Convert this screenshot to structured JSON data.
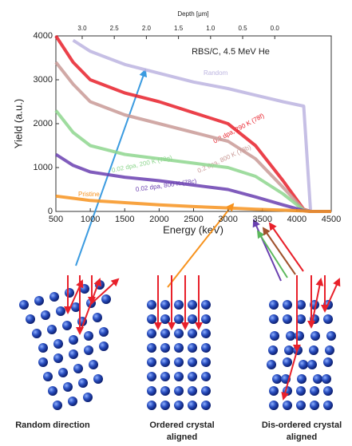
{
  "chart_data": {
    "type": "line",
    "title": "RBS/C, 4.5 MeV He",
    "xlabel": "Energy (keV)",
    "ylabel": "Yield (a.u.)",
    "x2label": "Depth [μm]",
    "xlim": [
      500,
      4500
    ],
    "xticks": [
      500,
      1000,
      1500,
      2000,
      2500,
      3000,
      3500,
      4000,
      4500
    ],
    "ylim": [
      0,
      4000
    ],
    "yticks": [
      0,
      1000,
      2000,
      3000,
      4000
    ],
    "x2lim": [
      3.41,
      -0.88
    ],
    "x2ticks": [
      {
        "value": 3,
        "label": "3.0"
      },
      {
        "value": 2.5,
        "label": "2.5"
      },
      {
        "value": 2,
        "label": "2.0"
      },
      {
        "value": 1.5,
        "label": "1.5"
      },
      {
        "value": 1,
        "label": "1.0"
      },
      {
        "value": 0.5,
        "label": "0.5"
      },
      {
        "value": 0,
        "label": "0.0"
      }
    ],
    "x": [
      500,
      750,
      1000,
      1500,
      2000,
      2500,
      3000,
      3400,
      3800,
      4100,
      4200,
      4500
    ],
    "series": [
      {
        "name": "Random",
        "color": "#bcb4e0",
        "values": [
          null,
          3900,
          3650,
          3350,
          3150,
          2950,
          2800,
          2650,
          2500,
          2400,
          0,
          0
        ]
      },
      {
        "name": "0.2 dpa, 290 K (78f)",
        "color": "#e8202a",
        "values": [
          4000,
          3400,
          3000,
          2700,
          2500,
          2250,
          2000,
          1500,
          700,
          50,
          0,
          0
        ]
      },
      {
        "name": "0.2 dpa, 800 K (78b)",
        "color": "#c99a96",
        "values": [
          3400,
          2900,
          2500,
          2200,
          2000,
          1800,
          1600,
          1200,
          550,
          40,
          0,
          0
        ]
      },
      {
        "name": "0.02 dpa, 200 K (78g)",
        "color": "#8ed68e",
        "values": [
          2300,
          1800,
          1500,
          1300,
          1200,
          1100,
          1000,
          800,
          400,
          30,
          0,
          0
        ]
      },
      {
        "name": "0.02 dpa, 800 K (78c)",
        "color": "#6a3fb0",
        "values": [
          1300,
          1050,
          900,
          780,
          700,
          600,
          500,
          330,
          150,
          20,
          0,
          0
        ]
      },
      {
        "name": "Pristine",
        "color": "#f7931e",
        "values": [
          350,
          300,
          250,
          200,
          150,
          110,
          80,
          50,
          30,
          10,
          0,
          0
        ]
      }
    ],
    "captions": [
      "Random direction",
      "Ordered crystal",
      "aligned",
      "Dis-ordered crystal",
      "aligned"
    ]
  }
}
